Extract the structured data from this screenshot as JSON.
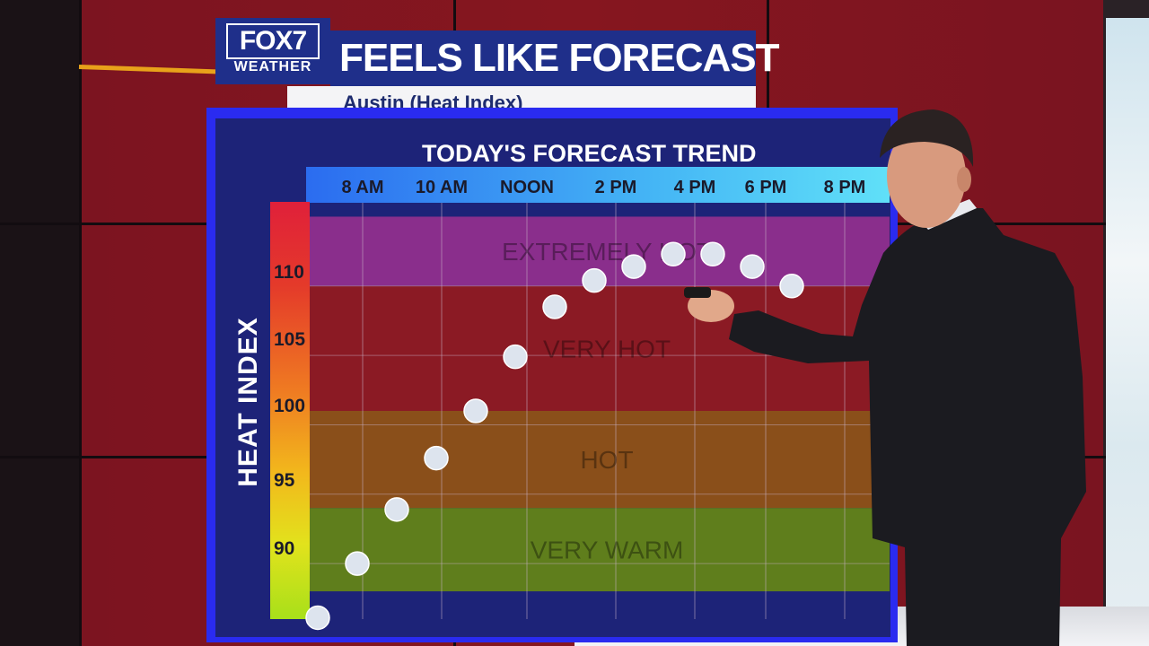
{
  "branding": {
    "logo_text": "FOX7",
    "logo_sub": "WEATHER"
  },
  "header": {
    "title": "FEELS LIKE FORECAST",
    "subtitle": "Austin (Heat Index)"
  },
  "chart_data": {
    "type": "scatter",
    "title": "TODAY'S FORECAST TREND",
    "ylabel": "HEAT INDEX",
    "x_ticks": [
      "8 AM",
      "10 AM",
      "NOON",
      "2 PM",
      "4 PM",
      "6 PM",
      "8 PM"
    ],
    "y_ticks": [
      90,
      95,
      100,
      105,
      110
    ],
    "ylim": [
      86,
      116
    ],
    "x": [
      "7 AM",
      "8 AM",
      "9 AM",
      "10 AM",
      "11 AM",
      "NOON",
      "1 PM",
      "2 PM",
      "3 PM",
      "4 PM",
      "5 PM",
      "6 PM",
      "7 PM"
    ],
    "values": [
      86.1,
      90.0,
      93.9,
      97.6,
      101.0,
      104.9,
      108.5,
      110.4,
      111.4,
      112.3,
      112.3,
      111.4,
      110.0
    ],
    "bands": [
      {
        "label": "EXTREMELY HOT",
        "from": 110,
        "to": 115,
        "color": "#8a2e8c"
      },
      {
        "label": "VERY HOT",
        "from": 101,
        "to": 110,
        "color": "#8b1a24"
      },
      {
        "label": "HOT",
        "from": 94,
        "to": 101,
        "color": "#8a4f1a"
      },
      {
        "label": "VERY WARM",
        "from": 88,
        "to": 94,
        "color": "#5f7e1c"
      }
    ],
    "grid": true
  },
  "colors": {
    "brand_blue": "#1f2f8a",
    "frame_blue": "#2a2bf0",
    "point": "#dde4ee",
    "wall_red": "#86161f"
  }
}
